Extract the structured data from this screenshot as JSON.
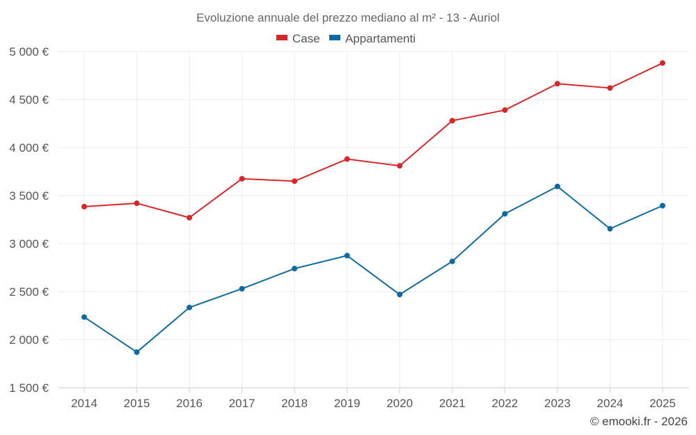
{
  "chart_data": {
    "type": "line",
    "title": "Evoluzione annuale del prezzo mediano al m² - 13 - Auriol",
    "xlabel": "",
    "ylabel": "",
    "categories": [
      "2014",
      "2015",
      "2016",
      "2017",
      "2018",
      "2019",
      "2020",
      "2021",
      "2022",
      "2023",
      "2024",
      "2025"
    ],
    "ylim": [
      1500,
      5000
    ],
    "yticks": [
      1500,
      2000,
      2500,
      3000,
      3500,
      4000,
      4500,
      5000
    ],
    "ytick_labels": [
      "1 500 €",
      "2 000 €",
      "2 500 €",
      "3 000 €",
      "3 500 €",
      "4 000 €",
      "4 500 €",
      "5 000 €"
    ],
    "grid": true,
    "legend_position": "top-center",
    "series": [
      {
        "name": "Case",
        "color": "#d62728",
        "values": [
          3385,
          3420,
          3270,
          3675,
          3650,
          3880,
          3810,
          4280,
          4390,
          4665,
          4620,
          4880
        ]
      },
      {
        "name": "Appartamenti",
        "color": "#0e6aa0",
        "values": [
          2235,
          1870,
          2335,
          2530,
          2740,
          2875,
          2470,
          2815,
          3310,
          3595,
          3155,
          3395
        ]
      }
    ]
  },
  "credit": "© emooki.fr - 2026"
}
